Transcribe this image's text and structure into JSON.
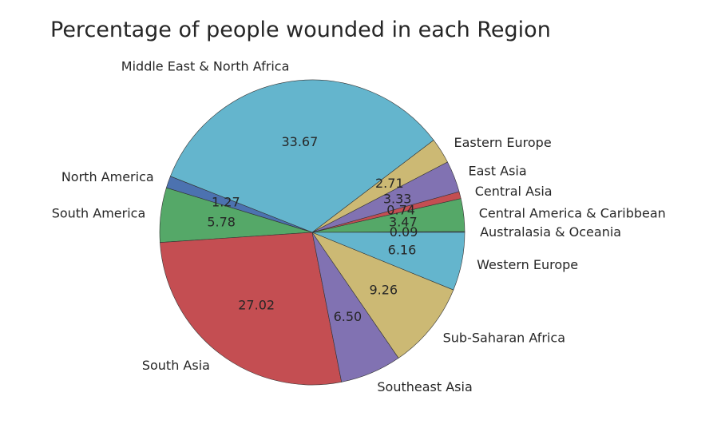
{
  "chart_data": {
    "type": "pie",
    "title": "Percentage of people wounded in each Region",
    "categories": [
      "Australasia & Oceania",
      "Central America & Caribbean",
      "Central Asia",
      "East Asia",
      "Eastern Europe",
      "Middle East & North Africa",
      "North America",
      "South America",
      "South Asia",
      "Southeast Asia",
      "Sub-Saharan Africa",
      "Western Europe"
    ],
    "values": [
      0.09,
      3.47,
      0.74,
      3.33,
      2.71,
      33.67,
      1.27,
      5.78,
      27.02,
      6.5,
      9.26,
      6.16
    ],
    "value_labels": [
      "0.09",
      "3.47",
      "0.74",
      "3.33",
      "2.71",
      "33.67",
      "1.27",
      "5.78",
      "27.02",
      "6.50",
      "9.26",
      "6.16"
    ],
    "colors": [
      "#4C72B0",
      "#55A868",
      "#C44E52",
      "#8172B2",
      "#CCB974",
      "#64B5CD",
      "#4C72B0",
      "#55A868",
      "#C44E52",
      "#8172B2",
      "#CCB974",
      "#64B5CD"
    ],
    "start_angle": 0,
    "direction": "counterclockwise",
    "xlabel": "",
    "ylabel": ""
  }
}
